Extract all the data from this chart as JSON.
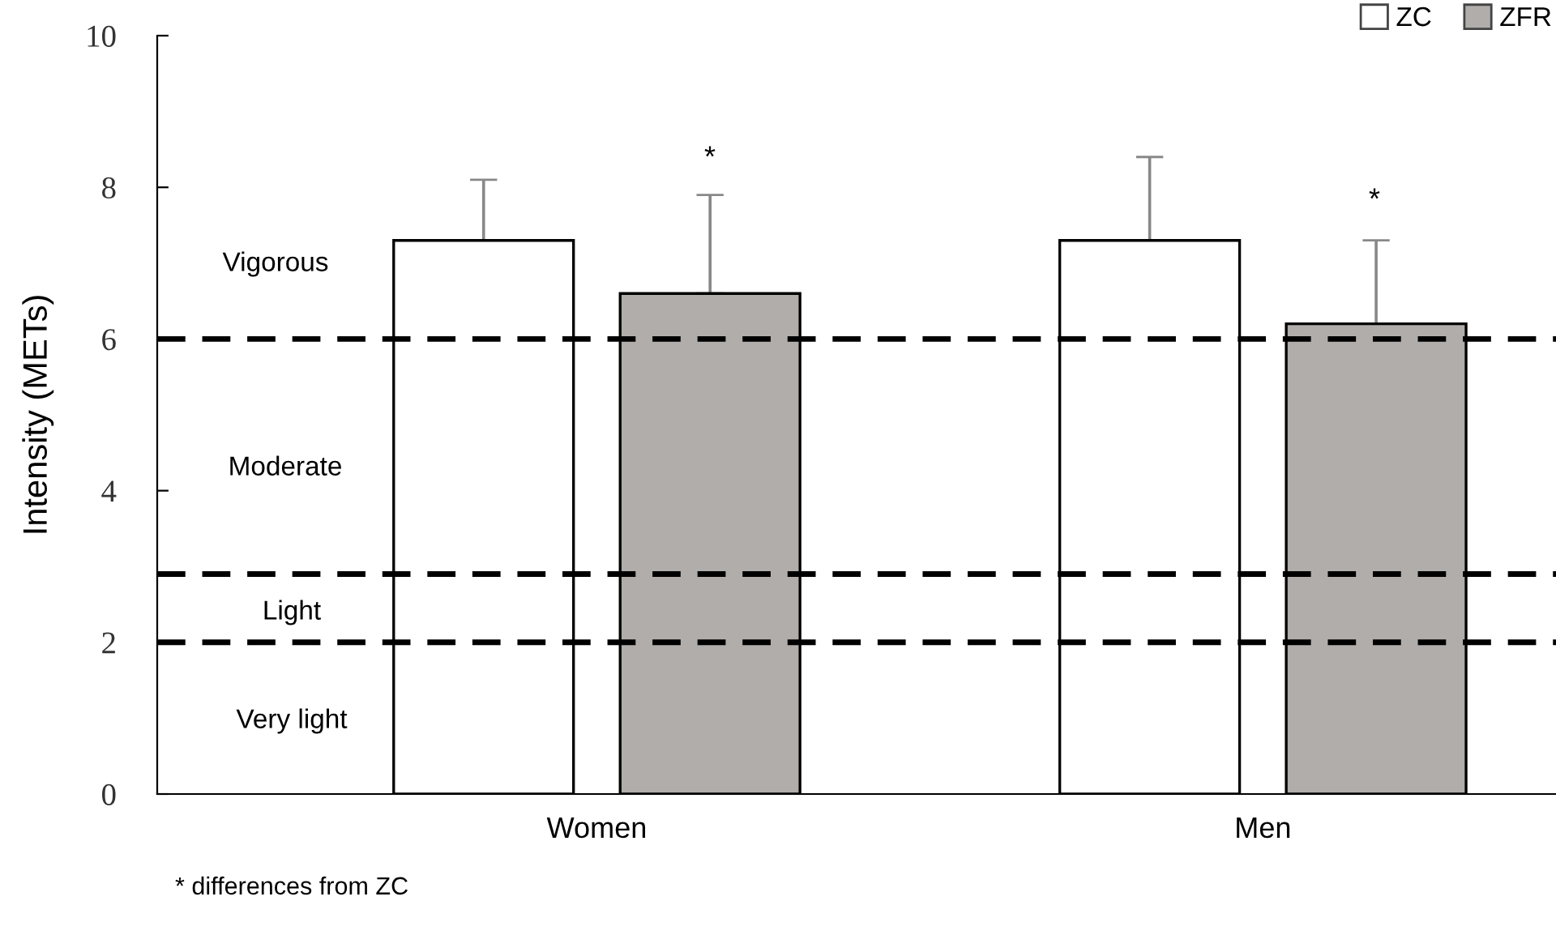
{
  "chart_data": {
    "type": "bar",
    "ylabel": "Intensity (METs)",
    "categories": [
      "Women",
      "Men"
    ],
    "series": [
      {
        "name": "ZC",
        "color": "#ffffff",
        "values": [
          7.3,
          7.3
        ],
        "errors": [
          [
            7.3,
            8.1
          ],
          [
            7.3,
            8.4
          ]
        ]
      },
      {
        "name": "ZFR",
        "color": "#b0adab",
        "values": [
          6.6,
          6.2
        ],
        "errors": [
          [
            6.6,
            7.9
          ],
          [
            6.2,
            7.3
          ]
        ]
      }
    ],
    "ylim": [
      0,
      10
    ],
    "yticks": [
      0,
      2,
      4,
      6,
      8,
      10
    ],
    "grid": false,
    "legend": "top right",
    "ref_lines": [
      {
        "axis": "y",
        "value": 6,
        "line_style": "dashed",
        "color": "#000000"
      },
      {
        "axis": "y",
        "value": 2.9,
        "line_style": "dashed",
        "color": "#000000"
      },
      {
        "axis": "y",
        "value": 2,
        "line_style": "dashed",
        "color": "#000000"
      }
    ],
    "annotations": [
      "Vigorous",
      "Moderate",
      "Light",
      "Very light",
      "*",
      "*",
      "* differences from ZC"
    ]
  }
}
